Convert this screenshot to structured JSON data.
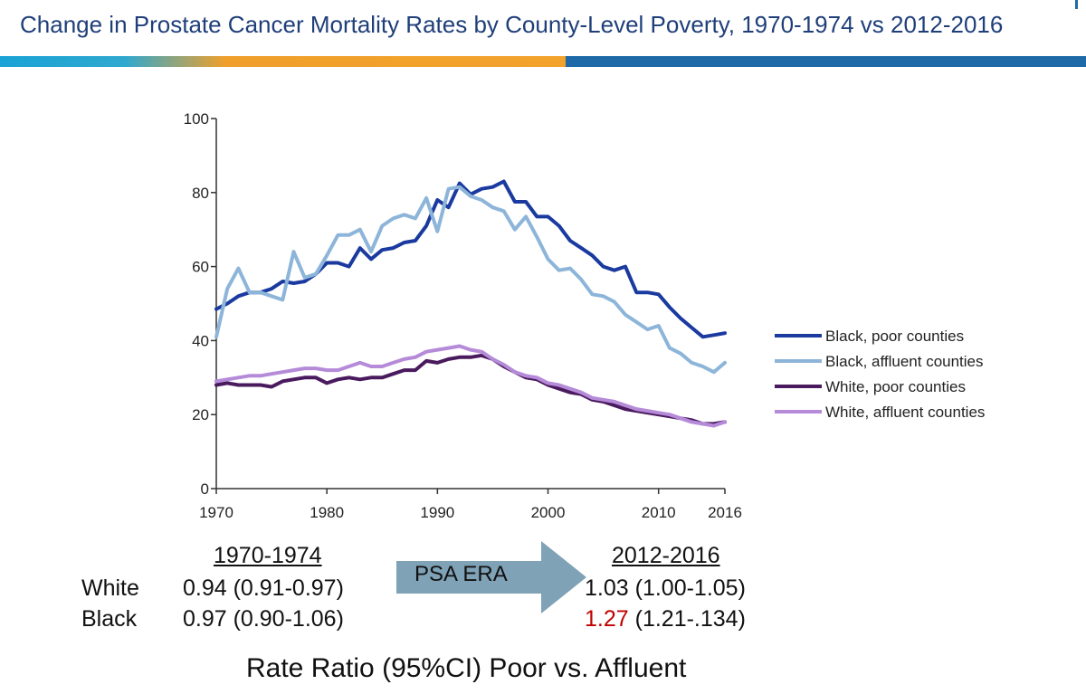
{
  "header": {
    "title": "Change in Prostate Cancer Mortality Rates by County-Level Poverty, 1970-1974 vs 2012-2016",
    "colors": {
      "accent_orange": "#f3a32c",
      "accent_blue": "#1e6aa8",
      "title": "#1f3f7a"
    }
  },
  "chart_data": {
    "type": "line",
    "title": "",
    "xlabel": "",
    "ylabel": "",
    "xlim": [
      1970,
      2016
    ],
    "ylim": [
      0,
      100
    ],
    "x_ticks": [
      1970,
      1980,
      1990,
      2000,
      2010,
      2016
    ],
    "y_ticks": [
      0,
      20,
      40,
      60,
      80,
      100
    ],
    "grid": false,
    "legend": "right",
    "x": [
      1970,
      1971,
      1972,
      1973,
      1974,
      1975,
      1976,
      1977,
      1978,
      1979,
      1980,
      1981,
      1982,
      1983,
      1984,
      1985,
      1986,
      1987,
      1988,
      1989,
      1990,
      1991,
      1992,
      1993,
      1994,
      1995,
      1996,
      1997,
      1998,
      1999,
      2000,
      2001,
      2002,
      2003,
      2004,
      2005,
      2006,
      2007,
      2008,
      2009,
      2010,
      2011,
      2012,
      2013,
      2014,
      2015,
      2016
    ],
    "series": [
      {
        "name": "Black, poor counties",
        "color": "#1a3aa0",
        "width": 4,
        "values": [
          48.5,
          50,
          52,
          53,
          53,
          54,
          56,
          55.5,
          56,
          58,
          61,
          61,
          60,
          65,
          62,
          64.5,
          65,
          66.5,
          67,
          71,
          78,
          76,
          82.5,
          79.5,
          81,
          81.5,
          83,
          77.5,
          77.5,
          73.5,
          73.5,
          71,
          67,
          65,
          63,
          60,
          59,
          60,
          53,
          53,
          52.5,
          49,
          46,
          43.5,
          41,
          41.5,
          42
        ]
      },
      {
        "name": "Black, affluent counties",
        "color": "#8db5d9",
        "width": 4,
        "values": [
          41,
          54,
          59.5,
          53,
          53,
          52,
          51,
          64,
          57,
          58,
          63,
          68.5,
          68.5,
          70,
          64,
          71,
          73,
          74,
          73,
          78.5,
          69.5,
          81,
          81.5,
          79,
          78,
          76,
          75,
          70,
          73.5,
          68,
          62,
          59,
          59.5,
          56.5,
          52.5,
          52,
          50.5,
          47,
          45,
          43,
          44,
          38,
          36.5,
          34,
          33,
          31.5,
          34
        ]
      },
      {
        "name": "White, poor counties",
        "color": "#4a1a5e",
        "width": 4,
        "values": [
          28,
          28.5,
          28,
          28,
          28,
          27.5,
          29,
          29.5,
          30,
          30,
          28.5,
          29.5,
          30,
          29.5,
          30,
          30,
          31,
          32,
          32,
          34.5,
          34,
          35,
          35.5,
          35.5,
          36,
          35,
          33,
          31.5,
          30,
          29.5,
          28,
          27,
          26,
          25.5,
          24,
          23.5,
          22.5,
          21.5,
          21,
          20.5,
          20,
          19.5,
          19,
          18.5,
          17.5,
          17.5,
          18
        ]
      },
      {
        "name": "White, affluent counties",
        "color": "#b58ad8",
        "width": 4,
        "values": [
          29,
          29.5,
          30,
          30.5,
          30.5,
          31,
          31.5,
          32,
          32.5,
          32.5,
          32,
          32,
          33,
          34,
          33,
          33,
          34,
          35,
          35.5,
          37,
          37.5,
          38,
          38.5,
          37.5,
          37,
          35,
          33.5,
          31.5,
          30.5,
          30,
          28.5,
          28,
          27,
          26,
          24.5,
          24,
          23.5,
          22.5,
          21.5,
          21,
          20.5,
          20,
          19,
          18,
          17.5,
          17,
          18
        ]
      }
    ]
  },
  "ratios": {
    "col1_header": "1970-1974",
    "col2_header": "2012-2016",
    "rows": [
      {
        "label": "White",
        "val1": "0.94 (0.91-0.97)",
        "val2_main": "1.03",
        "val2_ci": " (1.00-1.05)"
      },
      {
        "label": "Black",
        "val1": "0.97 (0.90-1.06)",
        "val2_main": "1.27",
        "val2_ci": " (1.21-.134)"
      }
    ],
    "highlight_color": "#c00000"
  },
  "arrow": {
    "label": "PSA ERA",
    "color": "#7fa2b7"
  },
  "footer": {
    "caption": "Rate Ratio (95%CI) Poor vs. Affluent"
  }
}
